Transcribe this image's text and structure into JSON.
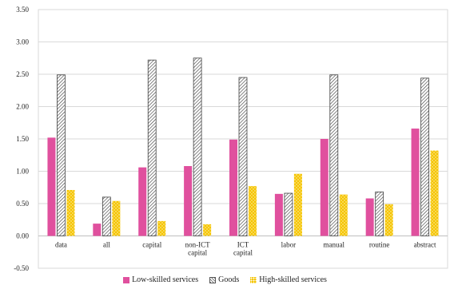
{
  "chart_data": {
    "type": "bar",
    "categories": [
      [
        "data"
      ],
      [
        "all"
      ],
      [
        "capital"
      ],
      [
        "non-ICT",
        "capital"
      ],
      [
        "ICT",
        "capital"
      ],
      [
        "labor"
      ],
      [
        "manual"
      ],
      [
        "routine"
      ],
      [
        "abstract"
      ]
    ],
    "series": [
      {
        "name": "Low-skilled services",
        "color": "#e0509e",
        "pattern": "solid",
        "values": [
          1.52,
          0.19,
          1.06,
          1.08,
          1.49,
          0.65,
          1.5,
          0.58,
          1.66
        ]
      },
      {
        "name": "Goods",
        "color": "#555555",
        "pattern": "diagonal-hatch",
        "values": [
          2.49,
          0.6,
          2.72,
          2.75,
          2.45,
          0.66,
          2.49,
          0.68,
          2.44
        ]
      },
      {
        "name": "High-skilled services",
        "color": "#f5c400",
        "pattern": "checker",
        "values": [
          0.71,
          0.54,
          0.23,
          0.18,
          0.77,
          0.96,
          0.64,
          0.49,
          1.32
        ]
      }
    ],
    "yticks": [
      "3.50",
      "3.00",
      "2.50",
      "2.00",
      "1.50",
      "1.00",
      "0.50",
      "0.00",
      "-0.50"
    ],
    "ylim": [
      -0.5,
      3.5
    ],
    "grid": true,
    "legend_position": "bottom"
  }
}
